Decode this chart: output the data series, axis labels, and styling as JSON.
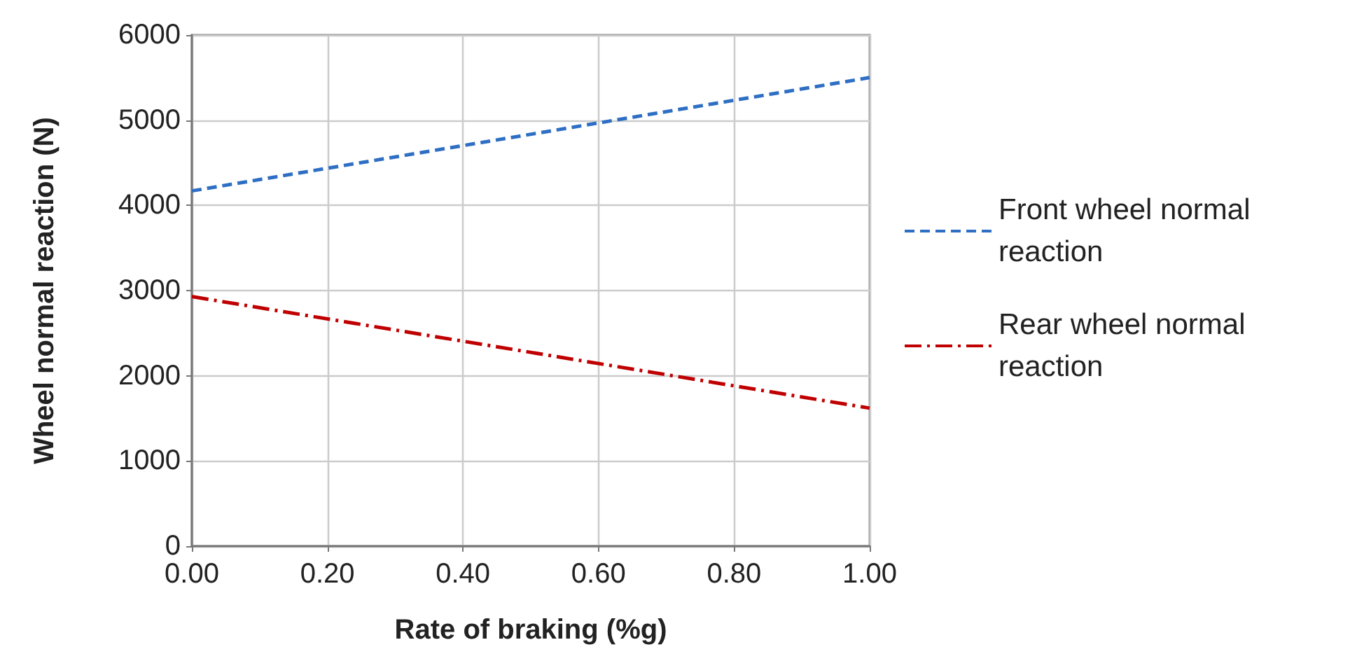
{
  "chart_data": {
    "type": "line",
    "xlabel": "Rate of braking (%g)",
    "ylabel": "Wheel normal reaction (N)",
    "x": [
      0,
      1
    ],
    "series": [
      {
        "name": "Front wheel normal reaction",
        "color": "#2e6fc4",
        "values": [
          4170,
          5500
        ],
        "line_style": "dashed"
      },
      {
        "name": "Rear wheel normal reaction",
        "color": "#c00000",
        "values": [
          2930,
          1620
        ],
        "line_style": "dashdot"
      }
    ],
    "xlim": [
      0,
      1
    ],
    "xticks": [
      {
        "value": 0,
        "label": "0.00"
      },
      {
        "value": 0.2,
        "label": "0.20"
      },
      {
        "value": 0.4,
        "label": "0.40"
      },
      {
        "value": 0.6,
        "label": "0.60"
      },
      {
        "value": 0.8,
        "label": "0.80"
      },
      {
        "value": 1,
        "label": "1.00"
      }
    ],
    "ylim": [
      0,
      6000
    ],
    "yticks": [
      0,
      1000,
      2000,
      3000,
      4000,
      5000,
      6000
    ],
    "grid": true,
    "legend": "right",
    "marker": "none"
  }
}
